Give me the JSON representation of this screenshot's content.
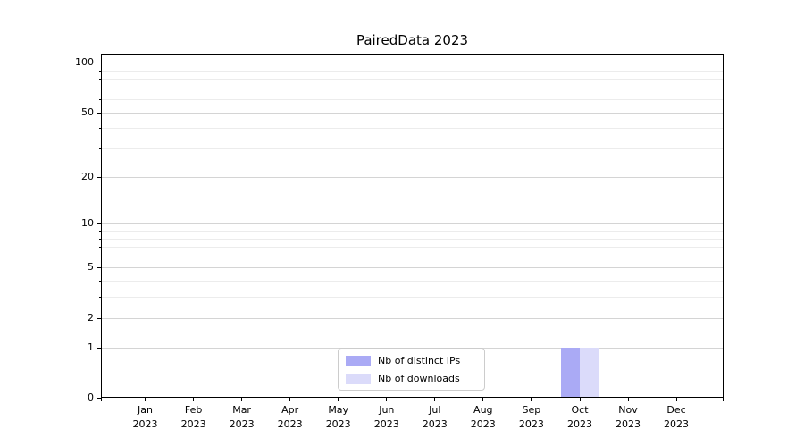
{
  "chart_data": {
    "type": "bar",
    "title": "PairedData 2023",
    "categories": [
      "Jan 2023",
      "Feb 2023",
      "Mar 2023",
      "Apr 2023",
      "May 2023",
      "Jun 2023",
      "Jul 2023",
      "Aug 2023",
      "Sep 2023",
      "Oct 2023",
      "Nov 2023",
      "Dec 2023"
    ],
    "x_tick_line1": [
      "Jan",
      "Feb",
      "Mar",
      "Apr",
      "May",
      "Jun",
      "Jul",
      "Aug",
      "Sep",
      "Oct",
      "Nov",
      "Dec"
    ],
    "x_tick_line2": "2023",
    "series": [
      {
        "name": "Nb of distinct IPs",
        "color": "#aaaaf5",
        "values": [
          0,
          0,
          0,
          0,
          0,
          0,
          0,
          0,
          0,
          1,
          0,
          0
        ]
      },
      {
        "name": "Nb of downloads",
        "color": "#dbdbfa",
        "values": [
          0,
          0,
          0,
          0,
          0,
          0,
          0,
          0,
          0,
          1,
          0,
          0
        ]
      }
    ],
    "yscale": "log1p",
    "ylim": [
      0,
      101
    ],
    "y_major_ticks": [
      0,
      1,
      2,
      5,
      10,
      20,
      50,
      100
    ],
    "y_minor_ticks": [
      3,
      4,
      6,
      7,
      8,
      9,
      30,
      40,
      60,
      70,
      80,
      90
    ],
    "grid": "horizontal major+minor",
    "legend_position": "lower center"
  },
  "legend": {
    "items": [
      {
        "label": "Nb of distinct IPs",
        "color": "#aaaaf5"
      },
      {
        "label": "Nb of downloads",
        "color": "#dbdbfa"
      }
    ]
  },
  "colors": {
    "background": "#ffffff",
    "spine": "#000000",
    "text": "#000000",
    "grid_major": "#d4d4d4",
    "grid_minor": "#ececec",
    "legend_border": "#cccccc"
  }
}
